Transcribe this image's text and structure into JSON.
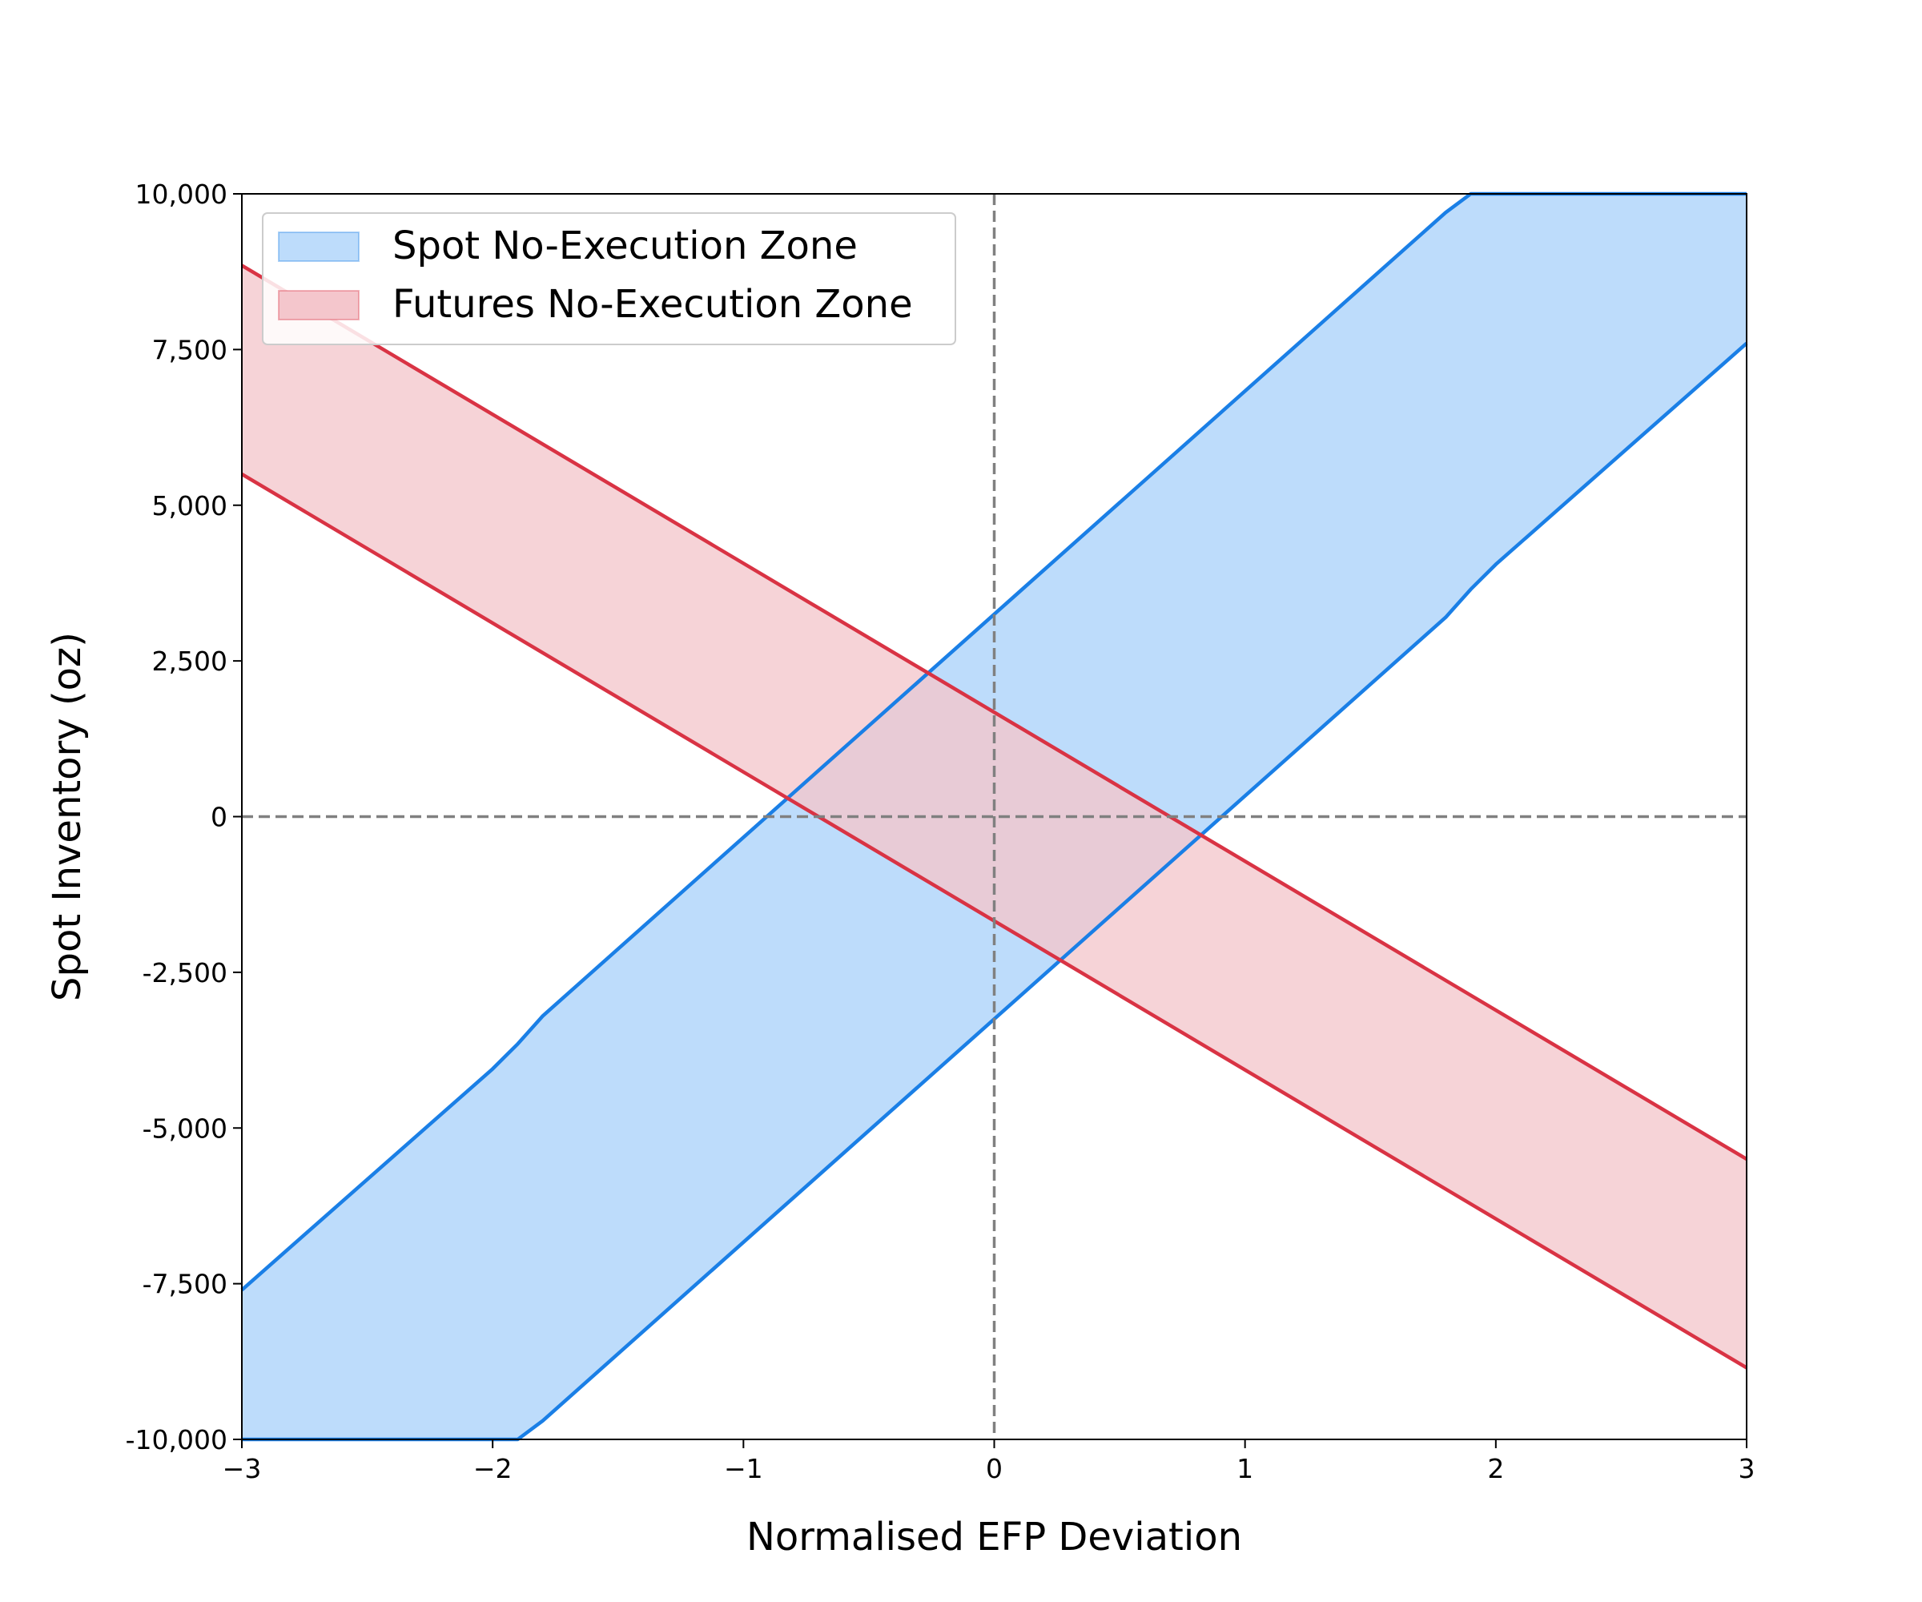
{
  "chart_data": {
    "type": "area",
    "title": "",
    "xlabel": "Normalised EFP Deviation",
    "ylabel": "Spot Inventory (oz)",
    "xlim": [
      -3,
      3
    ],
    "ylim": [
      -10000,
      10000
    ],
    "xticks": [
      -3,
      -2,
      -1,
      0,
      1,
      2,
      3
    ],
    "xtick_labels": [
      "−3",
      "−2",
      "−1",
      "0",
      "1",
      "2",
      "3"
    ],
    "yticks": [
      -10000,
      -7500,
      -5000,
      -2500,
      0,
      2500,
      5000,
      7500,
      10000
    ],
    "ytick_labels": [
      "-10,000",
      "-7,500",
      "-5,000",
      "-2,500",
      "0",
      "2,500",
      "5,000",
      "7,500",
      "10,000"
    ],
    "reference_lines": [
      {
        "orientation": "vertical",
        "value": 0,
        "style": "dashed",
        "color": "#808080"
      },
      {
        "orientation": "horizontal",
        "value": 0,
        "style": "dashed",
        "color": "#808080"
      }
    ],
    "legend_position": "top-left",
    "grid": false,
    "series": [
      {
        "name": "Spot No-Execution Zone",
        "line_color": "#1a7fe6",
        "fill_color": "#bddcfb",
        "x": [
          -3,
          -2,
          -1.9,
          -1.8,
          0,
          1.8,
          1.9,
          2,
          3
        ],
        "lower": [
          -10000,
          -10000,
          -10000,
          -9700,
          -3250,
          3200,
          3650,
          4050,
          7600
        ],
        "upper": [
          -7600,
          -4050,
          -3650,
          -3200,
          3250,
          9700,
          10000,
          10000,
          10000
        ]
      },
      {
        "name": "Futures No-Execution Zone",
        "line_color": "#d93344",
        "fill_color": "#f4c6cc",
        "x": [
          -3,
          3
        ],
        "lower": [
          5500,
          -8850
        ],
        "upper": [
          8850,
          -5500
        ]
      }
    ]
  }
}
